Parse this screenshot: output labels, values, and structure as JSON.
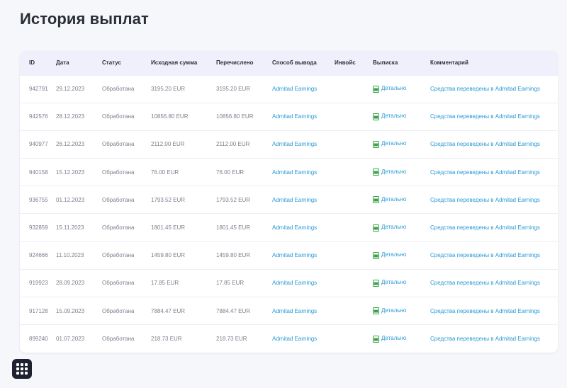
{
  "page": {
    "title": "История выплат"
  },
  "table": {
    "headers": {
      "id": "ID",
      "date": "Дата",
      "status": "Статус",
      "source_amount": "Исходная сумма",
      "transferred": "Перечислено",
      "method": "Способ вывода",
      "invoice": "Инвойс",
      "statement": "Выписка",
      "comment": "Комментарий"
    },
    "rows": [
      {
        "id": "942791",
        "date": "29.12.2023",
        "status": "Обработана",
        "source_amount": "3195.20 EUR",
        "transferred": "3195.20 EUR",
        "method": "Admitad Earnings",
        "invoice": "",
        "statement": "Детально",
        "comment": "Средства переведены в Admitad Earnings"
      },
      {
        "id": "942576",
        "date": "28.12.2023",
        "status": "Обработана",
        "source_amount": "10856.80 EUR",
        "transferred": "10856.80 EUR",
        "method": "Admitad Earnings",
        "invoice": "",
        "statement": "Детально",
        "comment": "Средства переведены в Admitad Earnings"
      },
      {
        "id": "940977",
        "date": "26.12.2023",
        "status": "Обработана",
        "source_amount": "2112.00 EUR",
        "transferred": "2112.00 EUR",
        "method": "Admitad Earnings",
        "invoice": "",
        "statement": "Детально",
        "comment": "Средства переведены в Admitad Earnings"
      },
      {
        "id": "940158",
        "date": "15.12.2023",
        "status": "Обработана",
        "source_amount": "76.00 EUR",
        "transferred": "76.00 EUR",
        "method": "Admitad Earnings",
        "invoice": "",
        "statement": "Детально",
        "comment": "Средства переведены в Admitad Earnings"
      },
      {
        "id": "936755",
        "date": "01.12.2023",
        "status": "Обработана",
        "source_amount": "1793.52 EUR",
        "transferred": "1793.52 EUR",
        "method": "Admitad Earnings",
        "invoice": "",
        "statement": "Детально",
        "comment": "Средства переведены в Admitad Earnings"
      },
      {
        "id": "932859",
        "date": "15.11.2023",
        "status": "Обработана",
        "source_amount": "1801.45 EUR",
        "transferred": "1801.45 EUR",
        "method": "Admitad Earnings",
        "invoice": "",
        "statement": "Детально",
        "comment": "Средства переведены в Admitad Earnings"
      },
      {
        "id": "924666",
        "date": "11.10.2023",
        "status": "Обработана",
        "source_amount": "1459.80 EUR",
        "transferred": "1459.80 EUR",
        "method": "Admitad Earnings",
        "invoice": "",
        "statement": "Детально",
        "comment": "Средства переведены в Admitad Earnings"
      },
      {
        "id": "919923",
        "date": "28.09.2023",
        "status": "Обработана",
        "source_amount": "17.85 EUR",
        "transferred": "17.85 EUR",
        "method": "Admitad Earnings",
        "invoice": "",
        "statement": "Детально",
        "comment": "Средства переведены в Admitad Earnings"
      },
      {
        "id": "917128",
        "date": "15.09.2023",
        "status": "Обработана",
        "source_amount": "7884.47 EUR",
        "transferred": "7884.47 EUR",
        "method": "Admitad Earnings",
        "invoice": "",
        "statement": "Детально",
        "comment": "Средства переведены в Admitad Earnings"
      },
      {
        "id": "899240",
        "date": "01.07.2023",
        "status": "Обработана",
        "source_amount": "218.73 EUR",
        "transferred": "218.73 EUR",
        "method": "Admitad Earnings",
        "invoice": "",
        "statement": "Детально",
        "comment": "Средства переведены в Admitad Earnings"
      }
    ]
  },
  "icons": {
    "statement_icon": "pdf-document-icon",
    "menu_icon": "apps-grid-icon"
  },
  "colors": {
    "link": "#2b9ad4",
    "header_bg": "#eff0fb",
    "pdf_icon": "#3aa34a"
  }
}
